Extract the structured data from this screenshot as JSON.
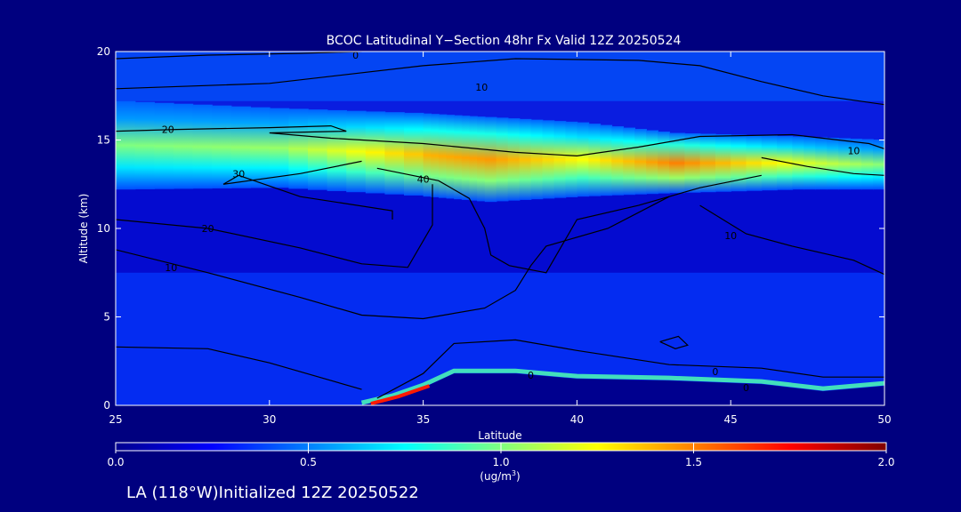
{
  "chart_data": {
    "type": "heatmap",
    "title": "BCOC Latitudinal Y−Section 48hr  Fx Valid 12Z 20250524",
    "xlabel": "Latitude",
    "ylabel": "Altitude (km)",
    "xlim": [
      25,
      50
    ],
    "ylim": [
      0,
      20
    ],
    "x_ticks": [
      "25",
      "30",
      "35",
      "40",
      "45",
      "50"
    ],
    "y_ticks": [
      "0",
      "5",
      "10",
      "15",
      "20"
    ],
    "colorbar": {
      "label": "(ug/m",
      "label_sup": "3",
      "label_end": ")",
      "range": [
        0.0,
        2.0
      ],
      "ticks": [
        "0.0",
        "0.5",
        "1.0",
        "1.5",
        "2.0"
      ],
      "colormap": [
        "#00008f",
        "#0000ff",
        "#0080ff",
        "#00ffff",
        "#80ff80",
        "#ffff00",
        "#ff8000",
        "#ff0000",
        "#800000"
      ]
    },
    "contour_levels": [
      "0",
      "10",
      "20",
      "30",
      "40"
    ],
    "fields": {
      "stratospheric_layer": [
        {
          "lat": 25,
          "z_bottom": 12.2,
          "z_top": 17.2,
          "peak": 1.0
        },
        {
          "lat": 30,
          "z_bottom": 12.3,
          "z_top": 16.8,
          "peak": 1.05
        },
        {
          "lat": 35,
          "z_bottom": 11.8,
          "z_top": 16.5,
          "peak": 1.4
        },
        {
          "lat": 37,
          "z_bottom": 11.5,
          "z_top": 16.3,
          "peak": 1.45
        },
        {
          "lat": 40,
          "z_bottom": 11.8,
          "z_top": 16.0,
          "peak": 1.25
        },
        {
          "lat": 43,
          "z_bottom": 12.0,
          "z_top": 15.4,
          "peak": 1.5
        },
        {
          "lat": 47,
          "z_bottom": 12.2,
          "z_top": 15.2,
          "peak": 1.2
        },
        {
          "lat": 50,
          "z_bottom": 12.2,
          "z_top": 15.0,
          "peak": 1.0
        }
      ],
      "terrain": [
        {
          "lat": 33,
          "z": 0
        },
        {
          "lat": 34,
          "z": 0.4
        },
        {
          "lat": 35,
          "z": 1.0
        },
        {
          "lat": 36,
          "z": 1.8
        },
        {
          "lat": 38,
          "z": 1.8
        },
        {
          "lat": 40,
          "z": 1.5
        },
        {
          "lat": 43,
          "z": 1.4
        },
        {
          "lat": 46,
          "z": 1.2
        },
        {
          "lat": 48,
          "z": 0.8
        },
        {
          "lat": 50,
          "z": 1.1
        }
      ]
    },
    "contours": [
      {
        "level": "0",
        "points": [
          [
            25,
            19.6
          ],
          [
            28,
            19.8
          ],
          [
            31,
            19.9
          ],
          [
            33,
            20
          ]
        ],
        "label_at": [
          32.8,
          19.8
        ]
      },
      {
        "level": "10",
        "points": [
          [
            25,
            17.9
          ],
          [
            30,
            18.2
          ],
          [
            35,
            19.2
          ],
          [
            38,
            19.6
          ],
          [
            42,
            19.5
          ],
          [
            44,
            19.2
          ],
          [
            46,
            18.3
          ],
          [
            48,
            17.5
          ],
          [
            50,
            17.0
          ]
        ],
        "label_at": [
          36.9,
          18.0
        ]
      },
      {
        "level": "20",
        "points": [
          [
            25,
            15.5
          ],
          [
            27,
            15.6
          ],
          [
            30,
            15.7
          ],
          [
            32,
            15.8
          ],
          [
            32.5,
            15.5
          ],
          [
            30,
            15.4
          ],
          [
            32,
            15.1
          ],
          [
            35,
            14.8
          ],
          [
            38,
            14.3
          ],
          [
            40,
            14.1
          ],
          [
            42,
            14.6
          ],
          [
            44,
            15.2
          ],
          [
            47,
            15.3
          ],
          [
            49.5,
            14.8
          ],
          [
            50,
            14.5
          ]
        ],
        "label_at": [
          26.7,
          15.6
        ]
      },
      {
        "level": "30",
        "points": [
          [
            33,
            13.8
          ],
          [
            31,
            13.1
          ],
          [
            28.5,
            12.5
          ],
          [
            29,
            13
          ],
          [
            31,
            11.8
          ],
          [
            34,
            11.0
          ],
          [
            34,
            10.5
          ]
        ],
        "label_at": [
          29.0,
          13.1
        ]
      },
      {
        "level": "40",
        "points": [
          [
            33.5,
            13.4
          ],
          [
            35.5,
            12.7
          ],
          [
            36.5,
            11.7
          ],
          [
            37,
            10.0
          ],
          [
            37.2,
            8.5
          ],
          [
            37.8,
            7.9
          ],
          [
            39,
            7.5
          ],
          [
            40,
            10.5
          ],
          [
            42,
            11.3
          ],
          [
            44,
            12.3
          ],
          [
            46,
            13.0
          ]
        ],
        "label_at": [
          35.0,
          12.8
        ]
      },
      {
        "level": "20",
        "points": [
          [
            25,
            10.5
          ],
          [
            28,
            10.0
          ],
          [
            31,
            8.9
          ],
          [
            33,
            8.0
          ],
          [
            34.5,
            7.8
          ],
          [
            35.3,
            10.2
          ],
          [
            35.3,
            12.5
          ]
        ],
        "label_at": [
          28.0,
          10.0
        ]
      },
      {
        "level": "10",
        "points": [
          [
            25,
            8.8
          ],
          [
            28,
            7.5
          ],
          [
            31,
            6.1
          ],
          [
            33,
            5.1
          ],
          [
            35,
            4.9
          ],
          [
            37,
            5.5
          ],
          [
            38,
            6.5
          ],
          [
            38.5,
            7.9
          ],
          [
            39,
            9.0
          ],
          [
            41,
            10.0
          ],
          [
            43,
            11.8
          ]
        ],
        "label_at": [
          26.8,
          7.8
        ]
      },
      {
        "level": "10",
        "points": [
          [
            44,
            11.3
          ],
          [
            45.5,
            9.7
          ],
          [
            47,
            9.0
          ],
          [
            49,
            8.2
          ],
          [
            50,
            7.4
          ]
        ],
        "label_at": [
          45.0,
          9.6
        ]
      },
      {
        "level": "10",
        "points": [
          [
            50,
            13.0
          ],
          [
            49,
            13.1
          ],
          [
            47.5,
            13.5
          ],
          [
            46,
            14.0
          ]
        ],
        "label_at": [
          49.0,
          14.4
        ]
      },
      {
        "level": "0",
        "points": [
          [
            33.5,
            0.4
          ],
          [
            35,
            1.8
          ],
          [
            36,
            3.5
          ],
          [
            38,
            3.7
          ],
          [
            40,
            3.1
          ],
          [
            43,
            2.3
          ],
          [
            46,
            2.1
          ],
          [
            48,
            1.6
          ],
          [
            50,
            1.6
          ]
        ],
        "label_at": [
          38.5,
          1.7
        ]
      },
      {
        "level": "0",
        "points": [
          [
            25,
            3.3
          ],
          [
            28,
            3.2
          ],
          [
            30,
            2.4
          ],
          [
            32,
            1.4
          ],
          [
            33,
            0.9
          ]
        ],
        "label_at": [
          44.5,
          1.9
        ]
      },
      {
        "level": "0",
        "points": [
          [
            42.7,
            3.6
          ],
          [
            43.3,
            3.9
          ],
          [
            43.6,
            3.4
          ],
          [
            43.2,
            3.2
          ],
          [
            42.7,
            3.6
          ]
        ],
        "label_at": [
          45.5,
          1.0
        ]
      }
    ]
  },
  "footer_text": "LA (118°W)Initialized 12Z 20250522"
}
